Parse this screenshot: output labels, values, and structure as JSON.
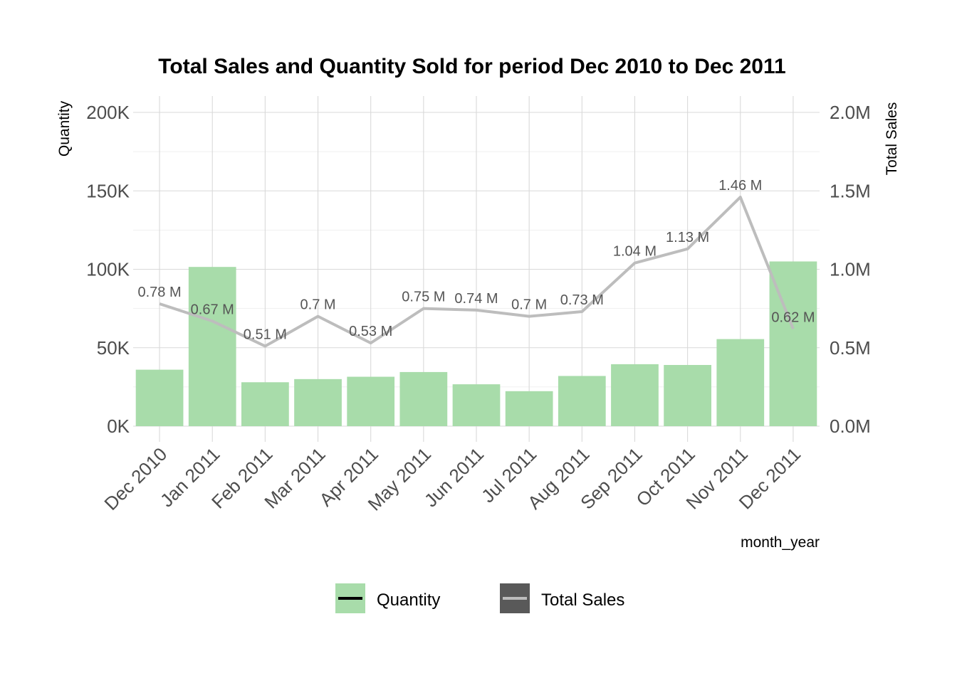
{
  "chart_data": {
    "type": "bar+line",
    "title": "Total Sales and Quantity Sold for period Dec 2010 to Dec 2011",
    "xlabel": "month_year",
    "ylabel_left": "Quantity",
    "ylabel_right": "Total Sales",
    "categories": [
      "Dec 2010",
      "Jan 2011",
      "Feb 2011",
      "Mar 2011",
      "Apr 2011",
      "May 2011",
      "Jun 2011",
      "Jul 2011",
      "Aug 2011",
      "Sep 2011",
      "Oct 2011",
      "Nov 2011",
      "Dec 2011"
    ],
    "left_axis": {
      "ylim": [
        0,
        200000
      ],
      "ticks": [
        0,
        50000,
        100000,
        150000,
        200000
      ],
      "tick_labels": [
        "0K",
        "50K",
        "100K",
        "150K",
        "200K"
      ]
    },
    "right_axis": {
      "ylim": [
        0,
        2.0
      ],
      "ticks": [
        0,
        0.5,
        1.0,
        1.5,
        2.0
      ],
      "tick_labels": [
        "0.0M",
        "0.5M",
        "1.0M",
        "1.5M",
        "2.0M"
      ]
    },
    "series": [
      {
        "name": "Quantity",
        "type": "bar",
        "axis": "left",
        "color": "#a8dcaa",
        "values": [
          36000,
          101500,
          28000,
          30000,
          31500,
          34500,
          26700,
          22300,
          32000,
          39500,
          39000,
          55500,
          105000
        ]
      },
      {
        "name": "Total Sales",
        "type": "line",
        "axis": "right",
        "color": "#bdbdbd",
        "values": [
          0.78,
          0.67,
          0.51,
          0.7,
          0.53,
          0.75,
          0.74,
          0.7,
          0.73,
          1.04,
          1.13,
          1.46,
          0.62
        ],
        "labels": [
          "0.78 M",
          "0.67 M",
          "0.51 M",
          "0.7 M",
          "0.53 M",
          "0.75 M",
          "0.74 M",
          "0.7 M",
          "0.73 M",
          "1.04 M",
          "1.13 M",
          "1.46 M",
          "0.62 M"
        ]
      }
    ],
    "grid": true,
    "legend": {
      "position": "bottom",
      "items": [
        {
          "label": "Quantity",
          "fill": "#a8dcaa",
          "line": "#000000"
        },
        {
          "label": "Total Sales",
          "fill": "#595959",
          "line": "#bdbdbd"
        }
      ]
    }
  }
}
